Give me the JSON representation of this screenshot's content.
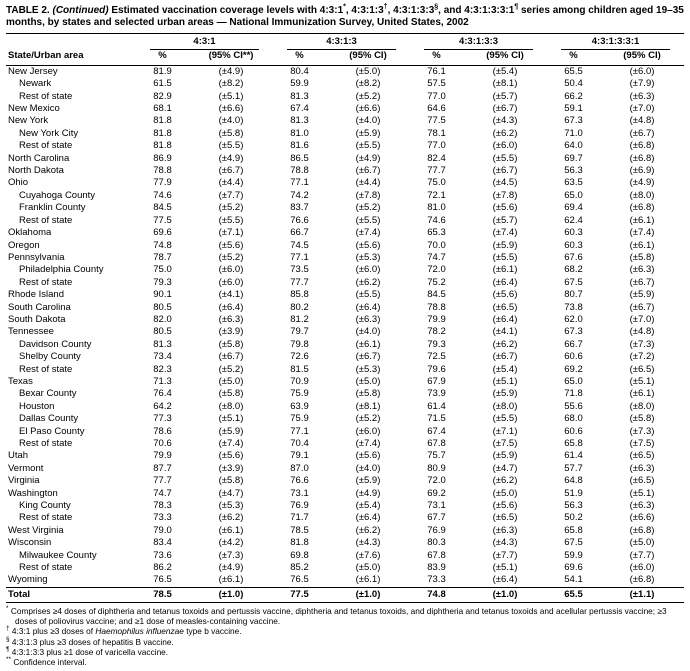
{
  "title": {
    "bold": "TABLE 2.",
    "italic": "(Continued)",
    "segments": [
      {
        "t": "Estimated vaccination coverage levels with 4:3:1"
      },
      {
        "t": "*",
        "sup": true
      },
      {
        "t": ", 4:3:1:3"
      },
      {
        "t": "†",
        "sup": true
      },
      {
        "t": ", 4:3:1:3:3"
      },
      {
        "t": "§",
        "sup": true
      },
      {
        "t": ", and 4:3:1:3:3:1"
      },
      {
        "t": "¶",
        "sup": true
      },
      {
        "t": " series among children aged 19–35 months, by states and selected urban areas — National Immunization Survey, United States, 2002"
      }
    ]
  },
  "table": {
    "row_header": "State/Urban area",
    "groups": [
      {
        "label": "4:3:1",
        "pct": "%",
        "ci": "(95% CI**)"
      },
      {
        "label": "4:3:1:3",
        "pct": "%",
        "ci": "(95% CI)"
      },
      {
        "label": "4:3:1:3:3",
        "pct": "%",
        "ci": "(95% CI)"
      },
      {
        "label": "4:3:1:3:3:1",
        "pct": "%",
        "ci": "(95% CI)"
      }
    ],
    "rows": [
      {
        "label": "New Jersey",
        "indent": 0,
        "v": [
          "81.9",
          "(±4.9)",
          "80.4",
          "(±5.0)",
          "76.1",
          "(±5.4)",
          "65.5",
          "(±6.0)"
        ]
      },
      {
        "label": "Newark",
        "indent": 1,
        "v": [
          "61.5",
          "(±8.2)",
          "59.9",
          "(±8.2)",
          "57.5",
          "(±8.1)",
          "50.4",
          "(±7.9)"
        ]
      },
      {
        "label": "Rest of state",
        "indent": 1,
        "v": [
          "82.9",
          "(±5.1)",
          "81.3",
          "(±5.2)",
          "77.0",
          "(±5.7)",
          "66.2",
          "(±6.3)"
        ]
      },
      {
        "label": "New Mexico",
        "indent": 0,
        "v": [
          "68.1",
          "(±6.6)",
          "67.4",
          "(±6.6)",
          "64.6",
          "(±6.7)",
          "59.1",
          "(±7.0)"
        ]
      },
      {
        "label": "New York",
        "indent": 0,
        "v": [
          "81.8",
          "(±4.0)",
          "81.3",
          "(±4.0)",
          "77.5",
          "(±4.3)",
          "67.3",
          "(±4.8)"
        ]
      },
      {
        "label": "New York City",
        "indent": 1,
        "v": [
          "81.8",
          "(±5.8)",
          "81.0",
          "(±5.9)",
          "78.1",
          "(±6.2)",
          "71.0",
          "(±6.7)"
        ]
      },
      {
        "label": "Rest of state",
        "indent": 1,
        "v": [
          "81.8",
          "(±5.5)",
          "81.6",
          "(±5.5)",
          "77.0",
          "(±6.0)",
          "64.0",
          "(±6.8)"
        ]
      },
      {
        "label": "North Carolina",
        "indent": 0,
        "v": [
          "86.9",
          "(±4.9)",
          "86.5",
          "(±4.9)",
          "82.4",
          "(±5.5)",
          "69.7",
          "(±6.8)"
        ]
      },
      {
        "label": "North Dakota",
        "indent": 0,
        "v": [
          "78.8",
          "(±6.7)",
          "78.8",
          "(±6.7)",
          "77.7",
          "(±6.7)",
          "56.3",
          "(±6.9)"
        ]
      },
      {
        "label": "Ohio",
        "indent": 0,
        "v": [
          "77.9",
          "(±4.4)",
          "77.1",
          "(±4.4)",
          "75.0",
          "(±4.5)",
          "63.5",
          "(±4.9)"
        ]
      },
      {
        "label": "Cuyahoga County",
        "indent": 1,
        "v": [
          "74.6",
          "(±7.7)",
          "74.2",
          "(±7.8)",
          "72.1",
          "(±7.8)",
          "65.0",
          "(±8.0)"
        ]
      },
      {
        "label": "Franklin County",
        "indent": 1,
        "v": [
          "84.5",
          "(±5.2)",
          "83.7",
          "(±5.2)",
          "81.0",
          "(±5.6)",
          "69.4",
          "(±6.8)"
        ]
      },
      {
        "label": "Rest of state",
        "indent": 1,
        "v": [
          "77.5",
          "(±5.5)",
          "76.6",
          "(±5.5)",
          "74.6",
          "(±5.7)",
          "62.4",
          "(±6.1)"
        ]
      },
      {
        "label": "Oklahoma",
        "indent": 0,
        "v": [
          "69.6",
          "(±7.1)",
          "66.7",
          "(±7.4)",
          "65.3",
          "(±7.4)",
          "60.3",
          "(±7.4)"
        ]
      },
      {
        "label": "Oregon",
        "indent": 0,
        "v": [
          "74.8",
          "(±5.6)",
          "74.5",
          "(±5.6)",
          "70.0",
          "(±5.9)",
          "60.3",
          "(±6.1)"
        ]
      },
      {
        "label": "Pennsylvania",
        "indent": 0,
        "v": [
          "78.7",
          "(±5.2)",
          "77.1",
          "(±5.3)",
          "74.7",
          "(±5.5)",
          "67.6",
          "(±5.8)"
        ]
      },
      {
        "label": "Philadelphia County",
        "indent": 1,
        "v": [
          "75.0",
          "(±6.0)",
          "73.5",
          "(±6.0)",
          "72.0",
          "(±6.1)",
          "68.2",
          "(±6.3)"
        ]
      },
      {
        "label": "Rest of state",
        "indent": 1,
        "v": [
          "79.3",
          "(±6.0)",
          "77.7",
          "(±6.2)",
          "75.2",
          "(±6.4)",
          "67.5",
          "(±6.7)"
        ]
      },
      {
        "label": "Rhode Island",
        "indent": 0,
        "v": [
          "90.1",
          "(±4.1)",
          "85.8",
          "(±5.5)",
          "84.5",
          "(±5.6)",
          "80.7",
          "(±5.9)"
        ]
      },
      {
        "label": "South Carolina",
        "indent": 0,
        "v": [
          "80.5",
          "(±6.4)",
          "80.2",
          "(±6.4)",
          "78.8",
          "(±6.5)",
          "73.8",
          "(±6.7)"
        ]
      },
      {
        "label": "South Dakota",
        "indent": 0,
        "v": [
          "82.0",
          "(±6.3)",
          "81.2",
          "(±6.3)",
          "79.9",
          "(±6.4)",
          "62.0",
          "(±7.0)"
        ]
      },
      {
        "label": "Tennessee",
        "indent": 0,
        "v": [
          "80.5",
          "(±3.9)",
          "79.7",
          "(±4.0)",
          "78.2",
          "(±4.1)",
          "67.3",
          "(±4.8)"
        ]
      },
      {
        "label": "Davidson County",
        "indent": 1,
        "v": [
          "81.3",
          "(±5.8)",
          "79.8",
          "(±6.1)",
          "79.3",
          "(±6.2)",
          "66.7",
          "(±7.3)"
        ]
      },
      {
        "label": "Shelby County",
        "indent": 1,
        "v": [
          "73.4",
          "(±6.7)",
          "72.6",
          "(±6.7)",
          "72.5",
          "(±6.7)",
          "60.6",
          "(±7.2)"
        ]
      },
      {
        "label": "Rest of state",
        "indent": 1,
        "v": [
          "82.3",
          "(±5.2)",
          "81.5",
          "(±5.3)",
          "79.6",
          "(±5.4)",
          "69.2",
          "(±6.5)"
        ]
      },
      {
        "label": "Texas",
        "indent": 0,
        "v": [
          "71.3",
          "(±5.0)",
          "70.9",
          "(±5.0)",
          "67.9",
          "(±5.1)",
          "65.0",
          "(±5.1)"
        ]
      },
      {
        "label": "Bexar County",
        "indent": 1,
        "v": [
          "76.4",
          "(±5.8)",
          "75.9",
          "(±5.8)",
          "73.9",
          "(±5.9)",
          "71.8",
          "(±6.1)"
        ]
      },
      {
        "label": "Houston",
        "indent": 1,
        "v": [
          "64.2",
          "(±8.0)",
          "63.9",
          "(±8.1)",
          "61.4",
          "(±8.0)",
          "55.6",
          "(±8.0)"
        ]
      },
      {
        "label": "Dallas County",
        "indent": 1,
        "v": [
          "77.3",
          "(±5.1)",
          "75.9",
          "(±5.2)",
          "71.5",
          "(±5.5)",
          "68.0",
          "(±5.8)"
        ]
      },
      {
        "label": "El Paso County",
        "indent": 1,
        "v": [
          "78.6",
          "(±5.9)",
          "77.1",
          "(±6.0)",
          "67.4",
          "(±7.1)",
          "60.6",
          "(±7.3)"
        ]
      },
      {
        "label": "Rest of state",
        "indent": 1,
        "v": [
          "70.6",
          "(±7.4)",
          "70.4",
          "(±7.4)",
          "67.8",
          "(±7.5)",
          "65.8",
          "(±7.5)"
        ]
      },
      {
        "label": "Utah",
        "indent": 0,
        "v": [
          "79.9",
          "(±5.6)",
          "79.1",
          "(±5.6)",
          "75.7",
          "(±5.9)",
          "61.4",
          "(±6.5)"
        ]
      },
      {
        "label": "Vermont",
        "indent": 0,
        "v": [
          "87.7",
          "(±3.9)",
          "87.0",
          "(±4.0)",
          "80.9",
          "(±4.7)",
          "57.7",
          "(±6.3)"
        ]
      },
      {
        "label": "Virginia",
        "indent": 0,
        "v": [
          "77.7",
          "(±5.8)",
          "76.6",
          "(±5.9)",
          "72.0",
          "(±6.2)",
          "64.8",
          "(±6.5)"
        ]
      },
      {
        "label": "Washington",
        "indent": 0,
        "v": [
          "74.7",
          "(±4.7)",
          "73.1",
          "(±4.9)",
          "69.2",
          "(±5.0)",
          "51.9",
          "(±5.1)"
        ]
      },
      {
        "label": "King County",
        "indent": 1,
        "v": [
          "78.3",
          "(±5.3)",
          "76.9",
          "(±5.4)",
          "73.1",
          "(±5.6)",
          "56.3",
          "(±6.3)"
        ]
      },
      {
        "label": "Rest of state",
        "indent": 1,
        "v": [
          "73.3",
          "(±6.2)",
          "71.7",
          "(±6.4)",
          "67.7",
          "(±6.5)",
          "50.2",
          "(±6.6)"
        ]
      },
      {
        "label": "West Virginia",
        "indent": 0,
        "v": [
          "79.0",
          "(±6.1)",
          "78.5",
          "(±6.2)",
          "76.9",
          "(±6.3)",
          "65.8",
          "(±6.8)"
        ]
      },
      {
        "label": "Wisconsin",
        "indent": 0,
        "v": [
          "83.4",
          "(±4.2)",
          "81.8",
          "(±4.3)",
          "80.3",
          "(±4.3)",
          "67.5",
          "(±5.0)"
        ]
      },
      {
        "label": "Milwaukee County",
        "indent": 1,
        "v": [
          "73.6",
          "(±7.3)",
          "69.8",
          "(±7.6)",
          "67.8",
          "(±7.7)",
          "59.9",
          "(±7.7)"
        ]
      },
      {
        "label": "Rest of state",
        "indent": 1,
        "v": [
          "86.2",
          "(±4.9)",
          "85.2",
          "(±5.0)",
          "83.9",
          "(±5.1)",
          "69.6",
          "(±6.0)"
        ]
      },
      {
        "label": "Wyoming",
        "indent": 0,
        "v": [
          "76.5",
          "(±6.1)",
          "76.5",
          "(±6.1)",
          "73.3",
          "(±6.4)",
          "54.1",
          "(±6.8)"
        ]
      }
    ],
    "total": {
      "label": "Total",
      "indent": 0,
      "v": [
        "78.5",
        "(±1.0)",
        "77.5",
        "(±1.0)",
        "74.8",
        "(±1.0)",
        "65.5",
        "(±1.1)"
      ]
    }
  },
  "footnotes": [
    {
      "marker": "*",
      "segments": [
        {
          "t": " Comprises ≥4 doses of diphtheria and tetanus toxoids and pertussis vaccine, diphtheria and tetanus toxoids, and diphtheria and tetanus toxoids and acellular pertussis vaccine; ≥3 doses of poliovirus vaccine; and ≥1 dose of measles-containing vaccine."
        }
      ]
    },
    {
      "marker": "†",
      "segments": [
        {
          "t": " 4:3:1 plus ≥3 doses of "
        },
        {
          "t": "Haemophilus influenzae",
          "italic": true
        },
        {
          "t": " type b vaccine."
        }
      ]
    },
    {
      "marker": "§",
      "segments": [
        {
          "t": " 4:3:1:3 plus ≥3 doses of hepatitis B vaccine."
        }
      ]
    },
    {
      "marker": "¶",
      "segments": [
        {
          "t": " 4:3:1:3:3 plus ≥1 dose of varicella vaccine."
        }
      ]
    },
    {
      "marker": "**",
      "segments": [
        {
          "t": " Confidence interval."
        }
      ]
    }
  ]
}
